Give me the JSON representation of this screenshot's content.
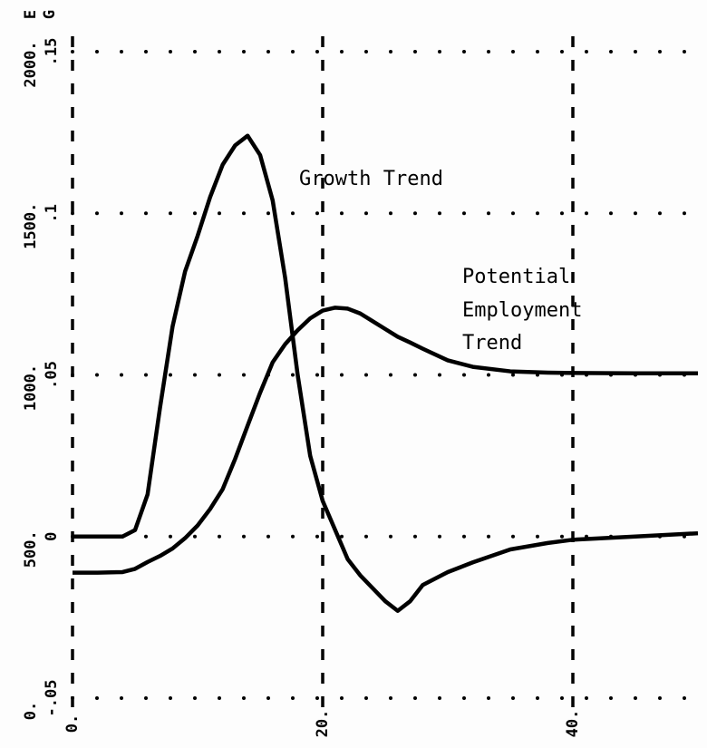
{
  "chart_data": {
    "type": "line",
    "ylabel": "G",
    "y2label": "E",
    "annotations": [
      "Growth Trend",
      "Potential",
      "Employment",
      "Trend"
    ],
    "x": [
      0,
      2,
      4,
      5,
      6,
      7,
      8,
      9,
      10,
      11,
      12,
      13,
      14,
      15,
      16,
      17,
      18,
      19,
      20,
      21,
      22,
      23,
      24,
      25,
      26,
      27,
      28,
      30,
      32,
      35,
      38,
      40,
      45,
      50
    ],
    "series": [
      {
        "color": "#000000",
        "values": [
          0,
          0,
          0,
          0.002,
          0.013,
          0.04,
          0.065,
          0.082,
          0.093,
          0.105,
          0.115,
          0.121,
          0.124,
          0.118,
          0.104,
          0.08,
          0.05,
          0.025,
          0.011,
          0.002,
          -0.007,
          -0.012,
          -0.016,
          -0.02,
          -0.023,
          -0.02,
          -0.015,
          -0.011,
          -0.008,
          -0.004,
          -0.002,
          -0.001,
          0,
          0.001
        ]
      },
      {
        "color": "#000000",
        "axis": "y2",
        "values": [
          388,
          388,
          390,
          400,
          421,
          440,
          463,
          495,
          534,
          585,
          646,
          740,
          843,
          945,
          1039,
          1095,
          1138,
          1175,
          1199,
          1208,
          1205,
          1190,
          1166,
          1142,
          1118,
          1100,
          1081,
          1045,
          1025,
          1011,
          1007,
          1006,
          1005,
          1005
        ]
      }
    ],
    "xlim": [
      0,
      50
    ],
    "xticks": [
      {
        "value": 0,
        "label": "0."
      },
      {
        "value": 20,
        "label": "20."
      },
      {
        "value": 40,
        "label": "40."
      }
    ],
    "ylim": [
      -0.05,
      0.15
    ],
    "yticks": [
      {
        "value": -0.05,
        "label": "-.05"
      },
      0,
      {
        "value": 0.05,
        "label": ".05"
      },
      {
        "value": 0.1,
        "label": ".1"
      },
      {
        "value": 0.15,
        "label": ".15"
      }
    ],
    "y2lim": [
      0,
      2000
    ],
    "y2ticks": [
      {
        "value": 0,
        "label": "0."
      },
      {
        "value": 500,
        "label": "500."
      },
      {
        "value": 1000,
        "label": "1000."
      },
      {
        "value": 1500,
        "label": "1500."
      },
      {
        "value": 2000,
        "label": "2000."
      }
    ],
    "grid": true
  }
}
